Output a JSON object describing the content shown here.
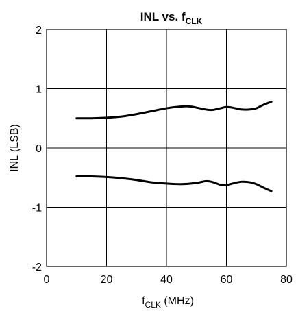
{
  "chart_data": {
    "type": "line",
    "title": {
      "main": "INL vs. f",
      "subscript": "CLK"
    },
    "xlabel": {
      "main": "f",
      "subscript": "CLK",
      "suffix": " (MHz)"
    },
    "ylabel": "INL (LSB)",
    "xlim": [
      0,
      80
    ],
    "ylim": [
      -2,
      2
    ],
    "xticks": [
      0,
      20,
      40,
      60,
      80
    ],
    "yticks": [
      -2,
      -1,
      0,
      1,
      2
    ],
    "x_tick_labels": [
      "0",
      "20",
      "40",
      "60",
      "80"
    ],
    "y_tick_labels": [
      "-2",
      "-1",
      "0",
      "1",
      "2"
    ],
    "grid": true,
    "series": [
      {
        "x": [
          10,
          15,
          20,
          25,
          30,
          35,
          40,
          45,
          48,
          52,
          55,
          58,
          60,
          62,
          65,
          68,
          70,
          72,
          75
        ],
        "y": [
          0.5,
          0.5,
          0.51,
          0.53,
          0.57,
          0.62,
          0.67,
          0.7,
          0.7,
          0.66,
          0.64,
          0.67,
          0.69,
          0.68,
          0.65,
          0.65,
          0.67,
          0.72,
          0.78
        ]
      },
      {
        "x": [
          10,
          15,
          20,
          25,
          30,
          35,
          40,
          45,
          50,
          53,
          55,
          58,
          60,
          62,
          65,
          68,
          70,
          72,
          75
        ],
        "y": [
          -0.48,
          -0.48,
          -0.49,
          -0.51,
          -0.54,
          -0.58,
          -0.6,
          -0.61,
          -0.59,
          -0.56,
          -0.57,
          -0.62,
          -0.63,
          -0.6,
          -0.57,
          -0.58,
          -0.61,
          -0.66,
          -0.73
        ]
      }
    ]
  }
}
